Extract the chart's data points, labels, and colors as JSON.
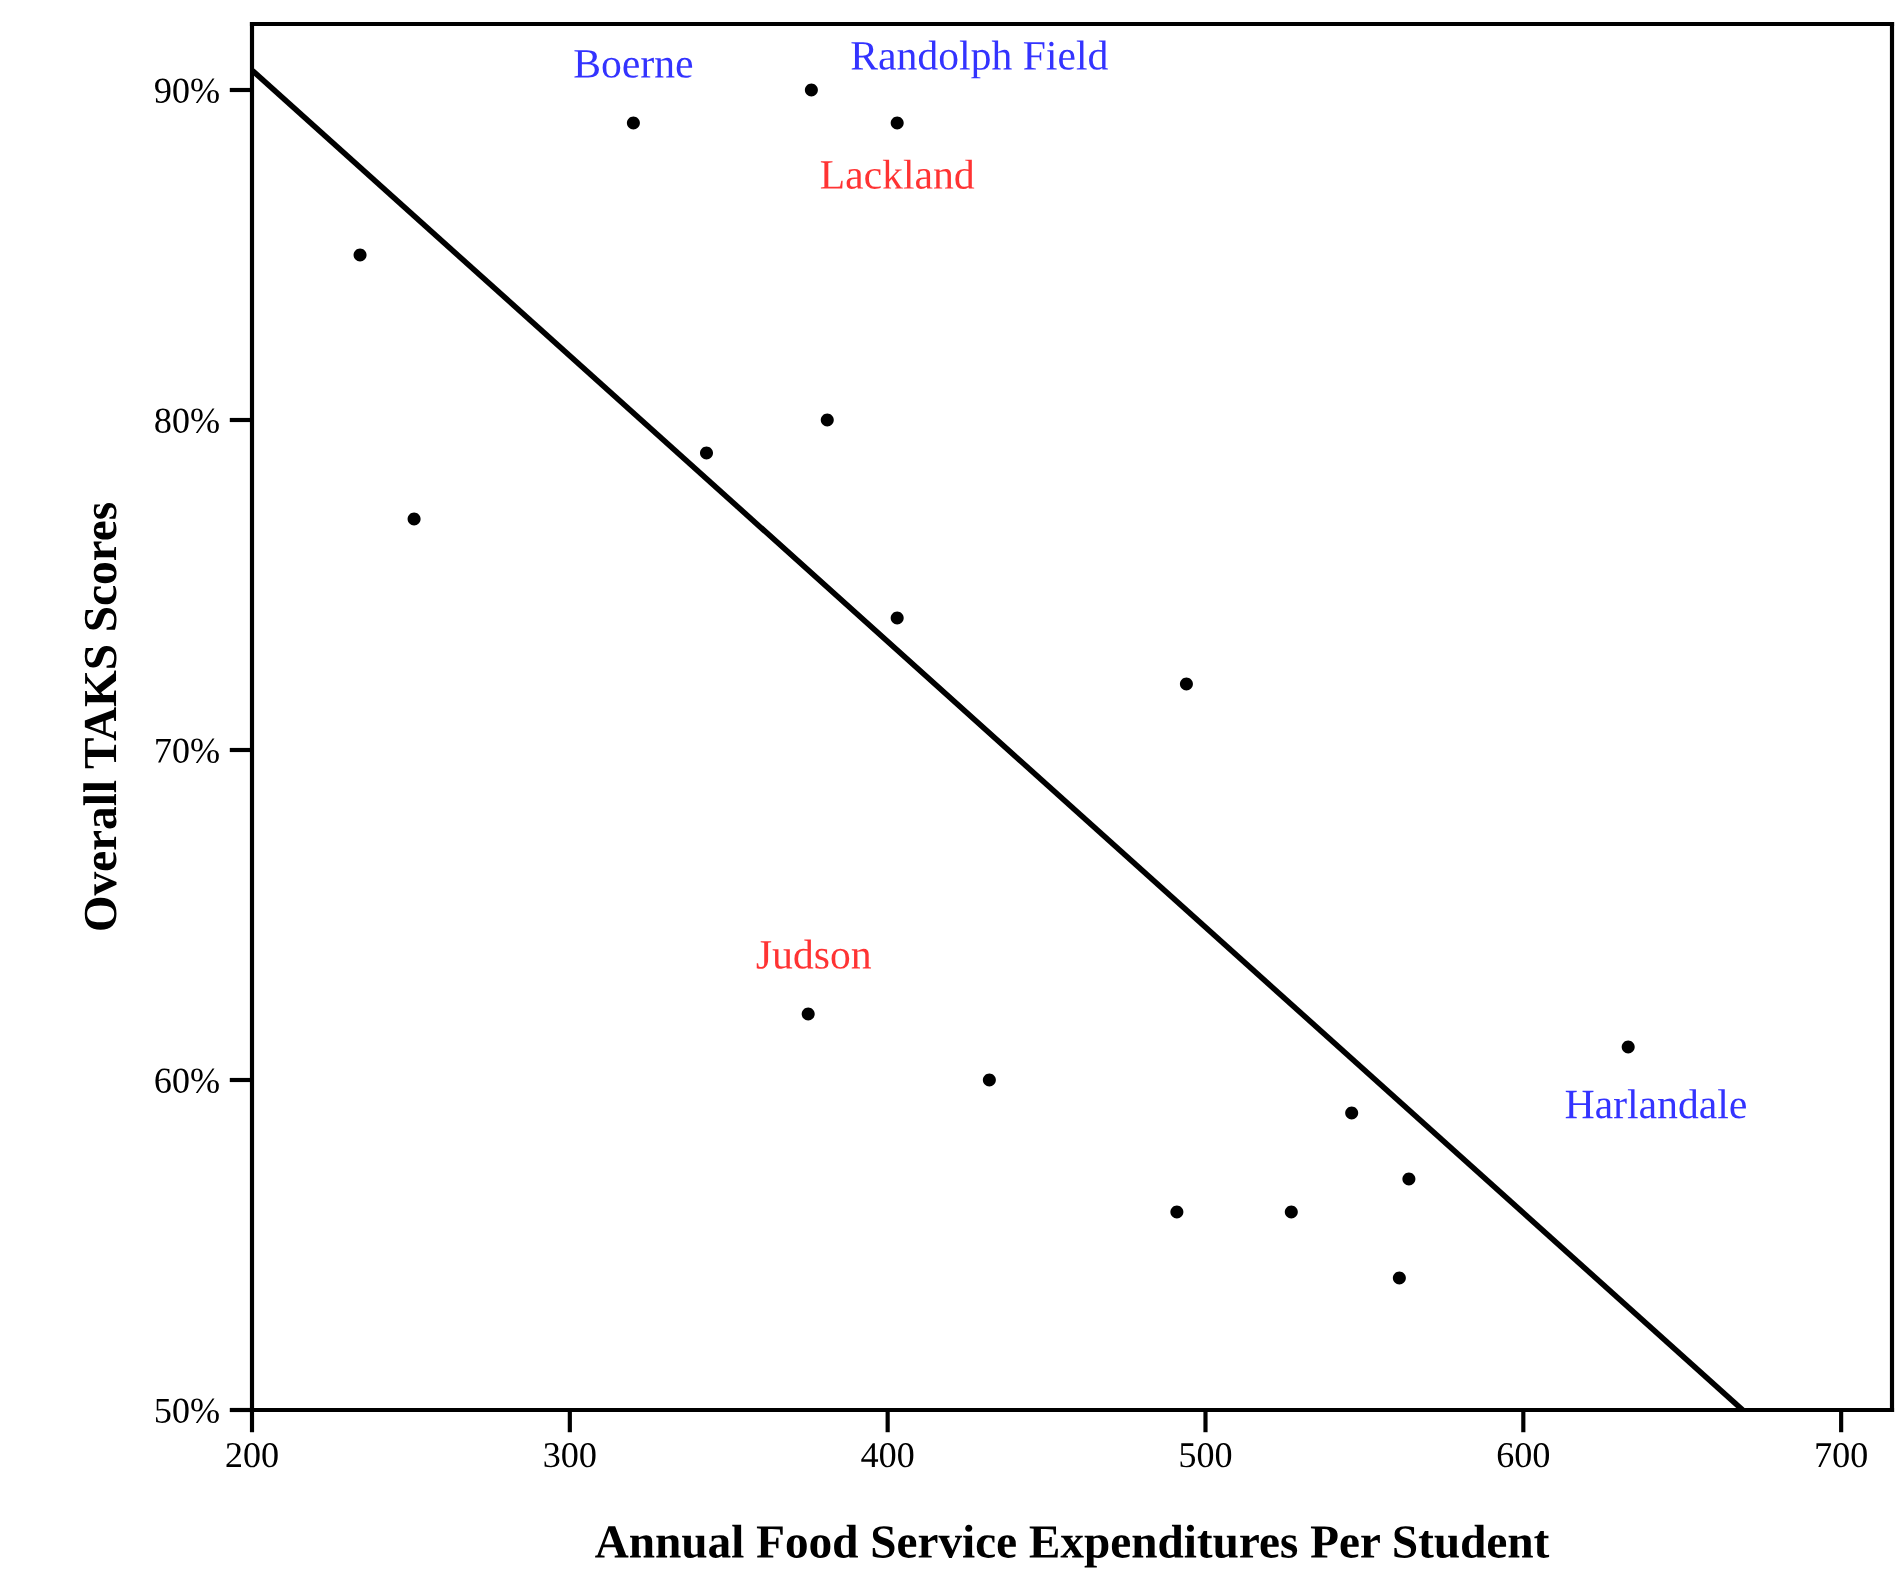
{
  "chart_data": {
    "type": "scatter",
    "xlabel": "Annual Food Service Expenditures Per Student",
    "ylabel": "Overall TAKS Scores",
    "series": [
      {
        "marker": "circle",
        "color": "#000000",
        "x": [
          234,
          251,
          320,
          343,
          376,
          381,
          403,
          403,
          375,
          432,
          494,
          491,
          527,
          546,
          564,
          561,
          633
        ],
        "values": [
          85,
          77,
          89,
          79,
          90,
          80,
          89,
          74,
          62,
          60,
          72,
          56,
          56,
          59,
          57,
          54,
          61
        ]
      },
      {
        "type": "line",
        "color": "#000000",
        "x": [
          200,
          669
        ],
        "values": [
          90.6,
          50
        ]
      }
    ],
    "xlim": [
      200,
      716
    ],
    "ylim": [
      50,
      92
    ],
    "xticks": [
      200,
      300,
      400,
      500,
      600,
      700
    ],
    "yticks": [
      {
        "value": 50,
        "label": "50%"
      },
      {
        "value": 60,
        "label": "60%"
      },
      {
        "value": 70,
        "label": "70%"
      },
      {
        "value": 80,
        "label": "80%"
      },
      {
        "value": 90,
        "label": "90%"
      }
    ],
    "annotations": [
      {
        "text": "Boerne",
        "x": 320,
        "y": 89
      },
      {
        "text": "Randolph Field",
        "x": 376,
        "y": 90
      },
      {
        "text": "Lackland",
        "x": 403,
        "y": 89
      },
      {
        "text": "Judson",
        "x": 375,
        "y": 62
      },
      {
        "text": "Harlandale",
        "x": 633,
        "y": 61
      }
    ],
    "grid": false,
    "legend": false
  }
}
